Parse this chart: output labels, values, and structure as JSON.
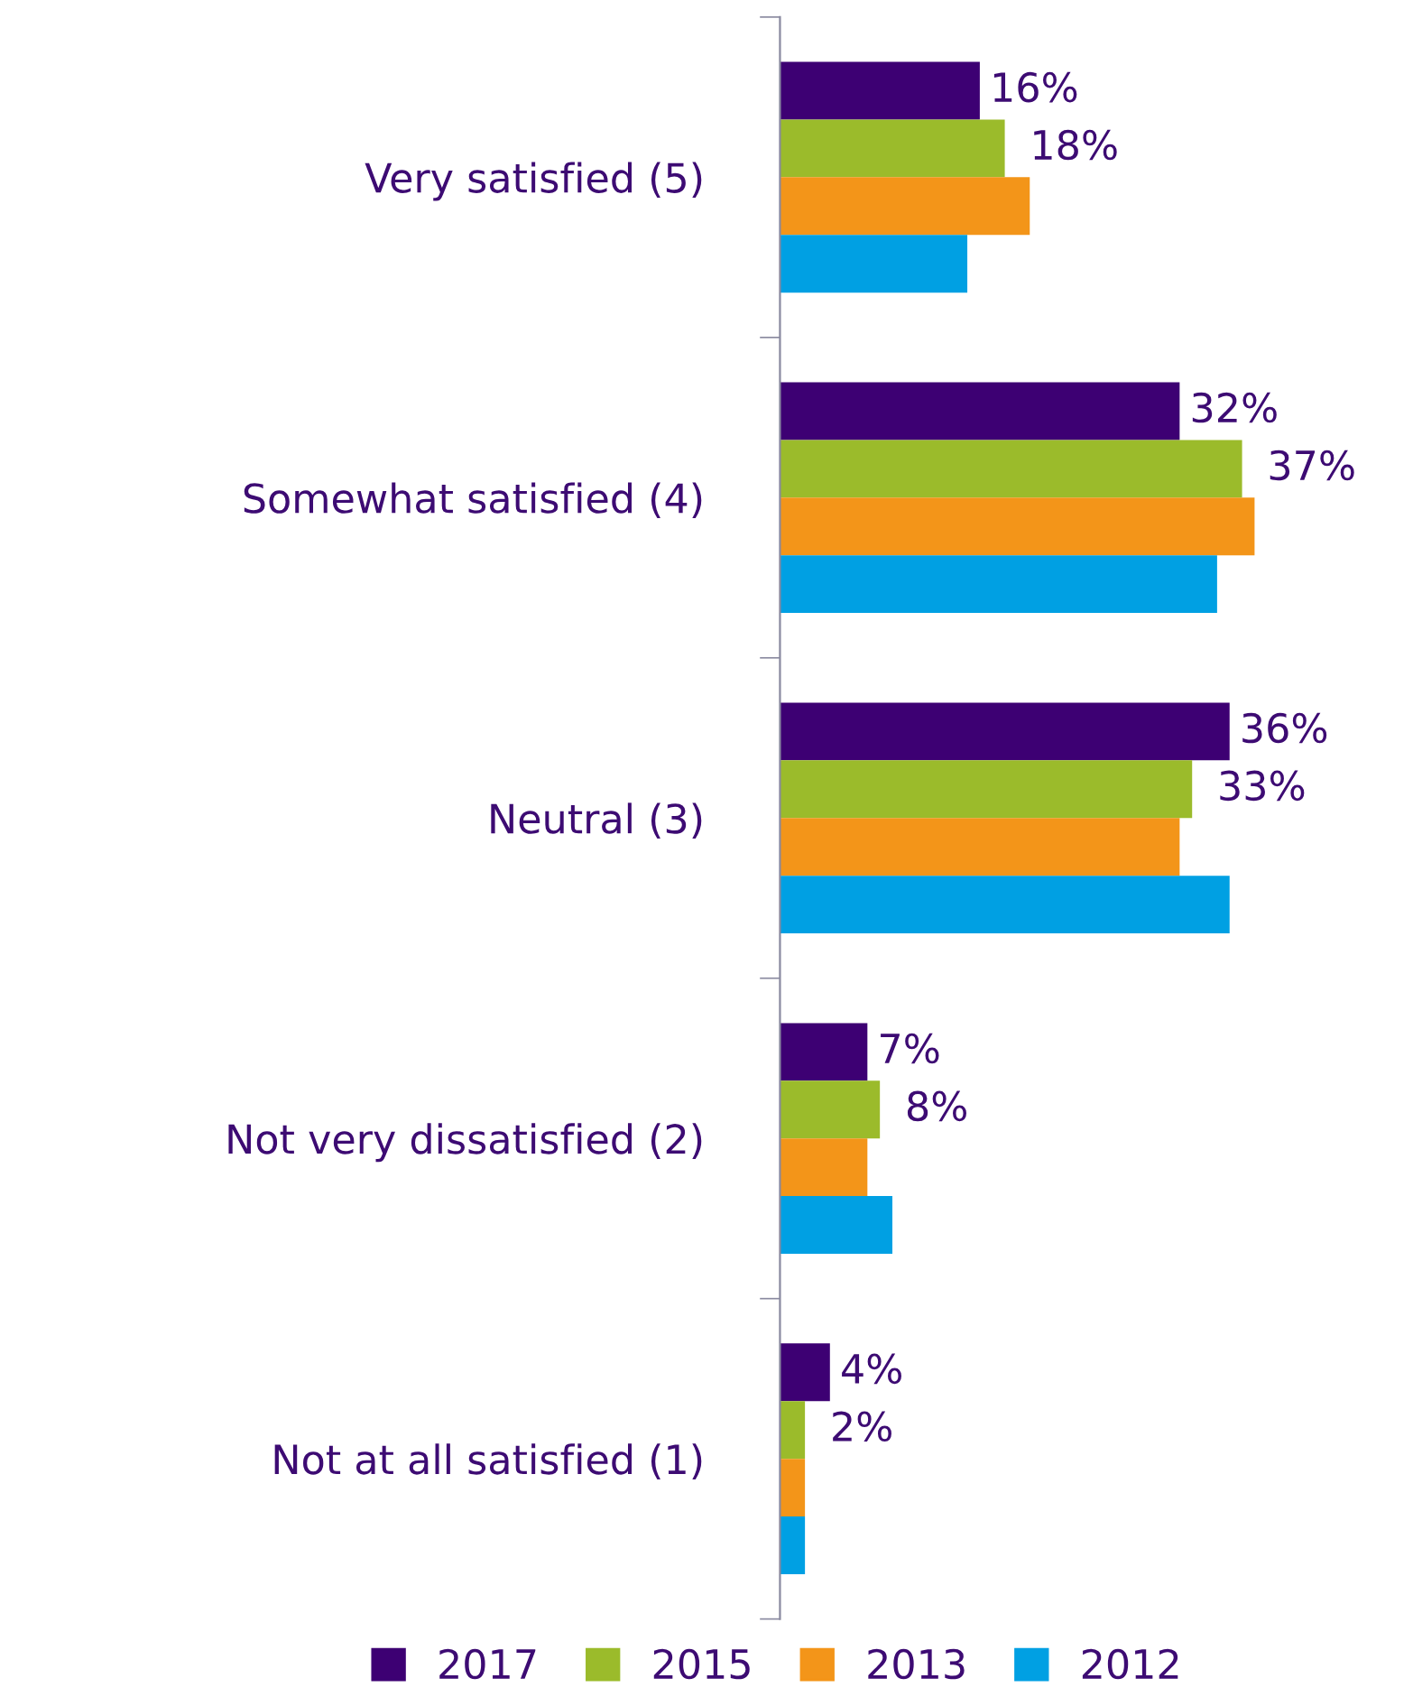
{
  "chart_data": {
    "type": "bar",
    "orientation": "horizontal",
    "categories": [
      "Very satisfied (5)",
      "Somewhat satisfied (4)",
      "Neutral (3)",
      "Not very dissatisfied (2)",
      "Not at all satisfied (1)"
    ],
    "series": [
      {
        "name": "2017",
        "color": "#3d0073",
        "values": [
          16,
          32,
          36,
          7,
          4
        ],
        "value_labels": [
          "16%",
          "32%",
          "36%",
          "7%",
          "4%"
        ]
      },
      {
        "name": "2015",
        "color": "#9bbb2b",
        "values": [
          18,
          37,
          33,
          8,
          2
        ],
        "value_labels": [
          "18%",
          "37%",
          "33%",
          "8%",
          "2%"
        ]
      },
      {
        "name": "2013",
        "color": "#f39519",
        "values": [
          20,
          38,
          32,
          7,
          2
        ]
      },
      {
        "name": "2012",
        "color": "#00a0e3",
        "values": [
          15,
          35,
          36,
          9,
          2
        ]
      }
    ],
    "tick_labels": "y",
    "legend": "bottom"
  }
}
